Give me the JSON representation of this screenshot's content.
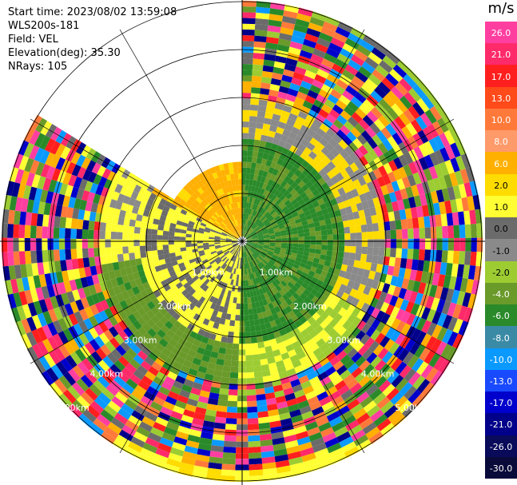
{
  "header": {
    "start_time": "Start time: 2023/08/02 13:59:08",
    "station": "WLS200s-181",
    "field": "Field: VEL",
    "elevation": "Elevation(deg): 35.30",
    "nrays": "NRays: 105"
  },
  "range_rings": {
    "labels": [
      "1.00km",
      "2.00km",
      "3.00km",
      "4.00km",
      "5.00km"
    ],
    "values_km": [
      1,
      2,
      3,
      4,
      5
    ]
  },
  "colorbar": {
    "unit": "m/s",
    "labels": [
      "26.0",
      "21.0",
      "17.0",
      "13.0",
      "10.0",
      "8.0",
      "6.0",
      "2.0",
      "1.0",
      "0.0",
      "-1.0",
      "-2.0",
      "-4.0",
      "-6.0",
      "-8.0",
      "-10.0",
      "-13.0",
      "-17.0",
      "-21.0",
      "-26.0",
      "-30.0"
    ],
    "colors": [
      "#ff3fa0",
      "#ff2a6a",
      "#ff1f1f",
      "#ff4a1a",
      "#ff7a3a",
      "#ff9a6a",
      "#ffb000",
      "#ffdc00",
      "#ffff33",
      "#6b6b6b",
      "#8a8a8a",
      "#9ccc32",
      "#6a9a2a",
      "#2a8a2a",
      "#3a8aa6",
      "#0a9aff",
      "#1a4aff",
      "#0000cc",
      "#00008a",
      "#0a0a5a",
      "#0a0a3a"
    ]
  }
}
